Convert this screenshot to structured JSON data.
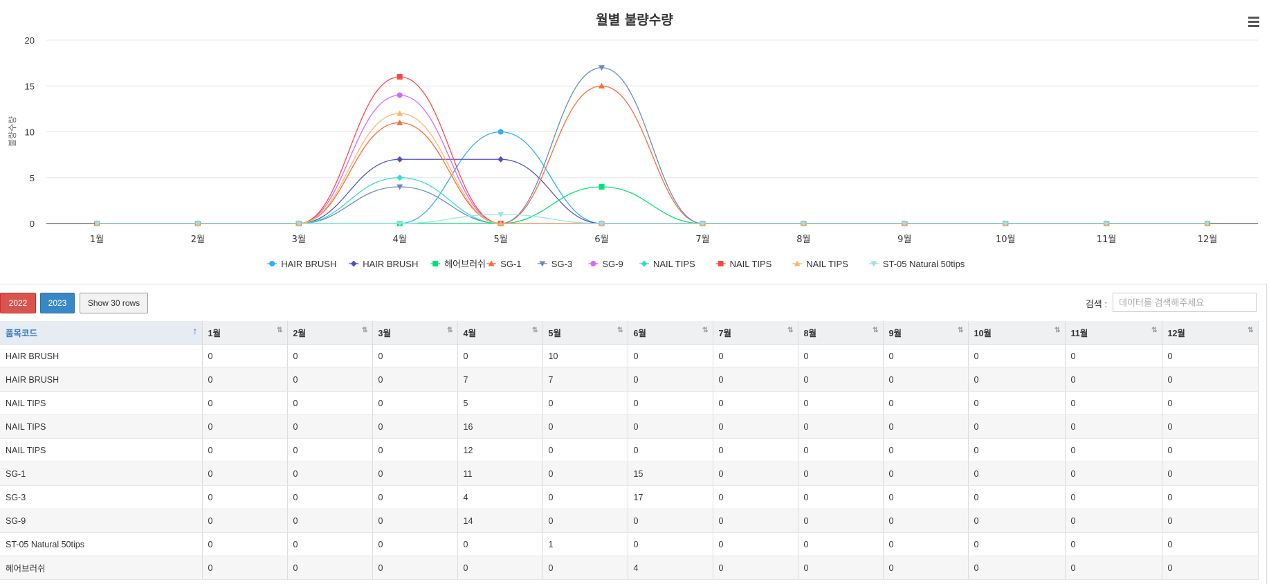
{
  "chart_data": {
    "type": "line",
    "title": "월별 불량수량",
    "ylabel": "불량수량",
    "xlabel": "",
    "ylim": [
      0,
      20
    ],
    "yticks": [
      0,
      5,
      10,
      15,
      20
    ],
    "grid": true,
    "legend_position": "bottom",
    "categories": [
      "1월",
      "2월",
      "3월",
      "4월",
      "5월",
      "6월",
      "7월",
      "8월",
      "9월",
      "10월",
      "11월",
      "12월"
    ],
    "series": [
      {
        "name": "HAIR BRUSH",
        "color": "#2caffe",
        "marker": "circle",
        "values": [
          0,
          0,
          0,
          0,
          10,
          0,
          0,
          0,
          0,
          0,
          0,
          0
        ]
      },
      {
        "name": "HAIR BRUSH",
        "color": "#544fc5",
        "marker": "diamond",
        "values": [
          0,
          0,
          0,
          7,
          7,
          0,
          0,
          0,
          0,
          0,
          0,
          0
        ]
      },
      {
        "name": "헤어브러쉬",
        "color": "#00e272",
        "marker": "square",
        "values": [
          0,
          0,
          0,
          0,
          0,
          4,
          0,
          0,
          0,
          0,
          0,
          0
        ]
      },
      {
        "name": "SG-1",
        "color": "#fe6a35",
        "marker": "triangle",
        "values": [
          0,
          0,
          0,
          11,
          0,
          15,
          0,
          0,
          0,
          0,
          0,
          0
        ]
      },
      {
        "name": "SG-3",
        "color": "#6b8abc",
        "marker": "triangle-down",
        "values": [
          0,
          0,
          0,
          4,
          0,
          17,
          0,
          0,
          0,
          0,
          0,
          0
        ]
      },
      {
        "name": "SG-9",
        "color": "#d568fb",
        "marker": "circle",
        "values": [
          0,
          0,
          0,
          14,
          0,
          0,
          0,
          0,
          0,
          0,
          0,
          0
        ]
      },
      {
        "name": "NAIL TIPS",
        "color": "#2ee0ca",
        "marker": "diamond",
        "values": [
          0,
          0,
          0,
          5,
          0,
          0,
          0,
          0,
          0,
          0,
          0,
          0
        ]
      },
      {
        "name": "NAIL TIPS",
        "color": "#fa4b42",
        "marker": "square",
        "values": [
          0,
          0,
          0,
          16,
          0,
          0,
          0,
          0,
          0,
          0,
          0,
          0
        ]
      },
      {
        "name": "NAIL TIPS",
        "color": "#feb56a",
        "marker": "triangle",
        "values": [
          0,
          0,
          0,
          12,
          0,
          0,
          0,
          0,
          0,
          0,
          0,
          0
        ]
      },
      {
        "name": "ST-05 Natural 50tips",
        "color": "#91e8e1",
        "marker": "triangle-down",
        "values": [
          0,
          0,
          0,
          0,
          1,
          0,
          0,
          0,
          0,
          0,
          0,
          0
        ]
      }
    ]
  },
  "toolbar": {
    "btn_2022": "2022",
    "btn_2023": "2023",
    "show_rows": "Show 30 rows",
    "search_label": "검색 :",
    "search_placeholder": "데이터를 검색해주세요",
    "search_value": ""
  },
  "table": {
    "columns": [
      "품목코드",
      "1월",
      "2월",
      "3월",
      "4월",
      "5월",
      "6월",
      "7월",
      "8월",
      "9월",
      "10월",
      "11월",
      "12월"
    ],
    "rows": [
      [
        "HAIR BRUSH",
        "0",
        "0",
        "0",
        "0",
        "10",
        "0",
        "0",
        "0",
        "0",
        "0",
        "0",
        "0"
      ],
      [
        "HAIR BRUSH",
        "0",
        "0",
        "0",
        "7",
        "7",
        "0",
        "0",
        "0",
        "0",
        "0",
        "0",
        "0"
      ],
      [
        "NAIL TIPS",
        "0",
        "0",
        "0",
        "5",
        "0",
        "0",
        "0",
        "0",
        "0",
        "0",
        "0",
        "0"
      ],
      [
        "NAIL TIPS",
        "0",
        "0",
        "0",
        "16",
        "0",
        "0",
        "0",
        "0",
        "0",
        "0",
        "0",
        "0"
      ],
      [
        "NAIL TIPS",
        "0",
        "0",
        "0",
        "12",
        "0",
        "0",
        "0",
        "0",
        "0",
        "0",
        "0",
        "0"
      ],
      [
        "SG-1",
        "0",
        "0",
        "0",
        "11",
        "0",
        "15",
        "0",
        "0",
        "0",
        "0",
        "0",
        "0"
      ],
      [
        "SG-3",
        "0",
        "0",
        "0",
        "4",
        "0",
        "17",
        "0",
        "0",
        "0",
        "0",
        "0",
        "0"
      ],
      [
        "SG-9",
        "0",
        "0",
        "0",
        "14",
        "0",
        "0",
        "0",
        "0",
        "0",
        "0",
        "0",
        "0"
      ],
      [
        "ST-05 Natural 50tips",
        "0",
        "0",
        "0",
        "0",
        "1",
        "0",
        "0",
        "0",
        "0",
        "0",
        "0",
        "0"
      ],
      [
        "헤어브러쉬",
        "0",
        "0",
        "0",
        "0",
        "0",
        "4",
        "0",
        "0",
        "0",
        "0",
        "0",
        "0"
      ]
    ]
  },
  "icons": {
    "menu": "hamburger-menu-icon",
    "sort": "sort-icon"
  }
}
